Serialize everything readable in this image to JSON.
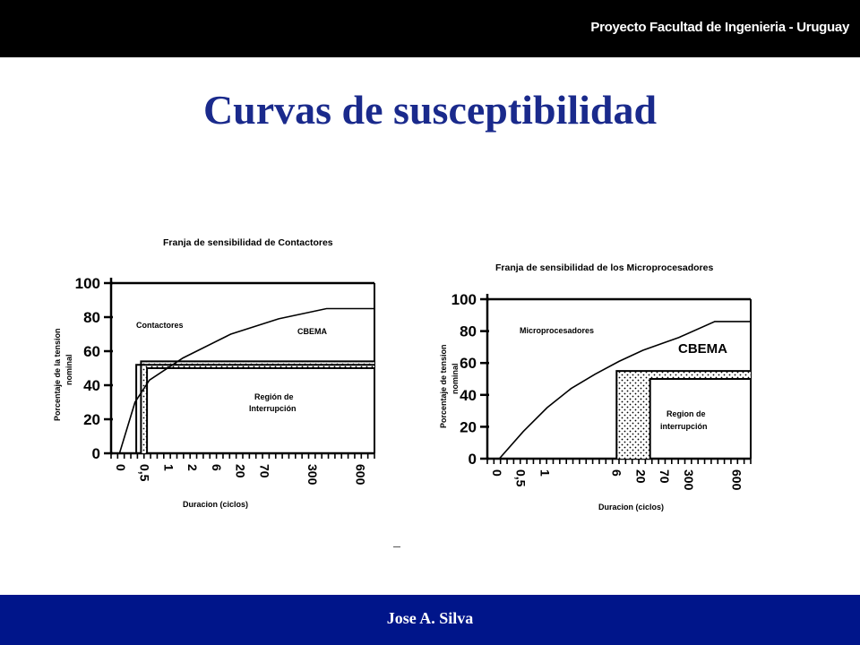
{
  "header": {
    "text": "Proyecto Facultad de Ingenieria - Uruguay"
  },
  "slide": {
    "title": "Curvas de susceptibilidad"
  },
  "footer": {
    "author": "Jose A. Silva"
  },
  "chart_data": [
    {
      "type": "line",
      "title": "Franja de sensibilidad de Contactores",
      "xlabel": "Duracion (ciclos)",
      "ylabel": [
        "Porcentaje de la tension",
        "nominal"
      ],
      "x_ticks": [
        "0",
        "0,5",
        "1",
        "2",
        "6",
        "20",
        "70",
        "300",
        "600"
      ],
      "y_ticks": [
        "0",
        "20",
        "40",
        "60",
        "80",
        "100"
      ],
      "ylim": [
        0,
        100
      ],
      "annotations": [
        "Contactores",
        "CBEMA",
        "Región de",
        "Interrupción"
      ],
      "series": [
        {
          "name": "CBEMA",
          "x": [
            0.35,
            1,
            1.6,
            3,
            5,
            7,
            9,
            11
          ],
          "y": [
            0,
            30,
            43,
            56,
            70,
            79,
            85,
            85
          ]
        },
        {
          "x": [
            1.05,
            1.05,
            11
          ],
          "y": [
            0,
            52,
            52
          ]
        },
        {
          "x": [
            1.25,
            1.25,
            11
          ],
          "y": [
            0,
            54,
            54
          ]
        },
        {
          "x": [
            1.5,
            1.5,
            11
          ],
          "y": [
            0,
            50,
            50
          ]
        }
      ]
    },
    {
      "type": "line",
      "title": "Franja de sensibilidad de los  Microprocesadores",
      "xlabel": "Duracion (ciclos)",
      "ylabel": [
        "Porcentaje de tension",
        "nominal"
      ],
      "x_ticks": [
        "0",
        "0,5",
        "1",
        "6",
        "20",
        "70",
        "300",
        "600"
      ],
      "y_ticks": [
        "0",
        "20",
        "40",
        "60",
        "80",
        "100"
      ],
      "ylim": [
        0,
        100
      ],
      "annotations": [
        "Microprocesadores",
        "CBEMA",
        "Region de",
        "interrupción"
      ],
      "series": [
        {
          "name": "CBEMA",
          "x": [
            0.5,
            1.5,
            2.5,
            3.5,
            4.5,
            5.5,
            6.5,
            8,
            9.5,
            11
          ],
          "y": [
            0,
            17,
            32,
            44,
            53,
            61,
            68,
            76,
            86,
            86
          ]
        },
        {
          "x": [
            5.4,
            5.4,
            11
          ],
          "y": [
            0,
            55,
            55
          ]
        },
        {
          "x": [
            6.8,
            6.8,
            11
          ],
          "y": [
            0,
            50,
            50
          ]
        }
      ]
    }
  ]
}
